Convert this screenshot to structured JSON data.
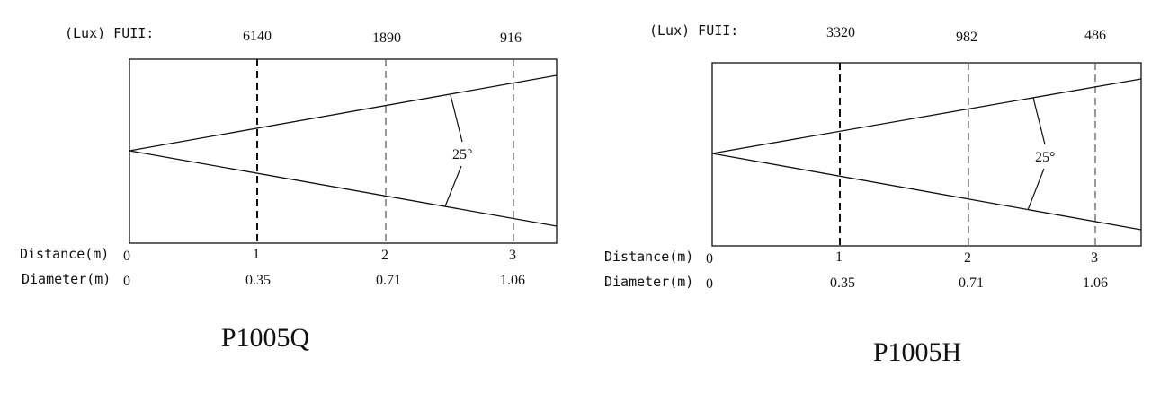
{
  "diagrams": [
    {
      "model": "P1005Q",
      "lux_label": "(Lux) FUII:",
      "lux": [
        "6140",
        "1890",
        "916"
      ],
      "distance_label": "Distance(m)",
      "distances": [
        "0",
        "1",
        "2",
        "3"
      ],
      "diameter_label": "Diameter(m)",
      "diameters": [
        "0",
        "0.35",
        "0.71",
        "1.06"
      ],
      "angle": "25°"
    },
    {
      "model": "P1005H",
      "lux_label": "(Lux) FUII:",
      "lux": [
        "3320",
        "982",
        "486"
      ],
      "distance_label": "Distance(m)",
      "distances": [
        "0",
        "1",
        "2",
        "3"
      ],
      "diameter_label": "Diameter(m)",
      "diameters": [
        "0",
        "0.35",
        "0.71",
        "1.06"
      ],
      "angle": "25°"
    }
  ]
}
